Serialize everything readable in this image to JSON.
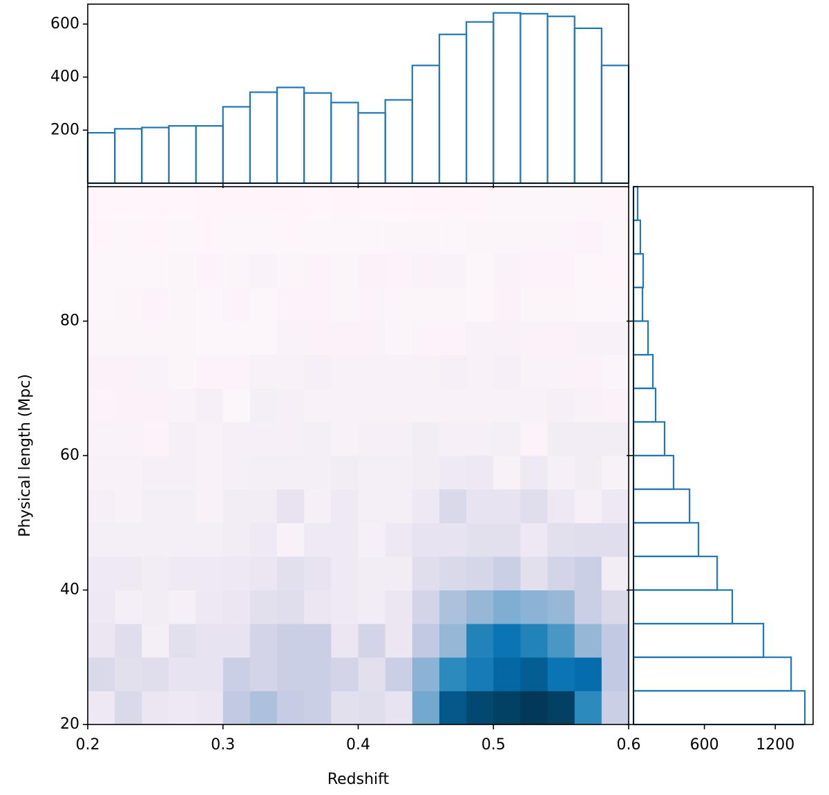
{
  "chart_data": [
    {
      "type": "heatmap",
      "xlabel": "Redshift",
      "ylabel": "Physical length (Mpc)",
      "xlim": [
        0.2,
        0.6
      ],
      "ylim": [
        20,
        100
      ],
      "xticks": [
        0.2,
        0.3,
        0.4,
        0.5,
        0.6
      ],
      "yticks": [
        20,
        40,
        60,
        80
      ],
      "xbins": [
        0.2,
        0.22,
        0.24,
        0.26,
        0.28,
        0.3,
        0.32,
        0.34,
        0.36,
        0.38,
        0.4,
        0.42,
        0.44,
        0.46,
        0.48,
        0.5,
        0.52,
        0.54,
        0.56,
        0.58,
        0.6
      ],
      "ybins": [
        20,
        25,
        30,
        35,
        40,
        45,
        50,
        55,
        60,
        65,
        70,
        75,
        80,
        85,
        90,
        95,
        100
      ],
      "zlim": [
        0,
        170
      ],
      "colormap": [
        "#fff7fb",
        "#ece7f2",
        "#d0d1e6",
        "#a6bddb",
        "#74a9cf",
        "#3690c0",
        "#0570b0",
        "#045a8d",
        "#023858"
      ],
      "z": [
        [
          20,
          35,
          22,
          20,
          22,
          50,
          60,
          48,
          45,
          28,
          30,
          25,
          85,
          150,
          160,
          165,
          170,
          165,
          110,
          45
        ],
        [
          35,
          28,
          30,
          25,
          25,
          45,
          40,
          45,
          45,
          40,
          28,
          45,
          75,
          110,
          120,
          135,
          145,
          125,
          130,
          50
        ],
        [
          22,
          30,
          12,
          28,
          25,
          25,
          40,
          45,
          45,
          22,
          40,
          22,
          50,
          70,
          115,
          125,
          115,
          100,
          70,
          50
        ],
        [
          20,
          12,
          15,
          10,
          20,
          22,
          28,
          30,
          22,
          18,
          15,
          22,
          40,
          60,
          70,
          80,
          75,
          70,
          45,
          35
        ],
        [
          18,
          18,
          15,
          18,
          18,
          20,
          22,
          28,
          25,
          18,
          15,
          15,
          30,
          35,
          38,
          45,
          28,
          40,
          45,
          15
        ],
        [
          12,
          12,
          12,
          12,
          12,
          15,
          18,
          8,
          18,
          18,
          10,
          20,
          25,
          25,
          28,
          28,
          20,
          28,
          30,
          30
        ],
        [
          10,
          8,
          12,
          12,
          8,
          15,
          15,
          25,
          10,
          18,
          12,
          12,
          20,
          35,
          25,
          25,
          30,
          20,
          10,
          20
        ],
        [
          8,
          8,
          10,
          10,
          8,
          10,
          12,
          12,
          12,
          15,
          12,
          12,
          15,
          18,
          20,
          8,
          18,
          10,
          15,
          8
        ],
        [
          7,
          7,
          5,
          10,
          8,
          10,
          10,
          10,
          12,
          8,
          10,
          10,
          15,
          10,
          10,
          12,
          5,
          15,
          15,
          15
        ],
        [
          5,
          6,
          6,
          7,
          10,
          3,
          12,
          10,
          8,
          8,
          8,
          8,
          8,
          8,
          8,
          8,
          8,
          10,
          8,
          6
        ],
        [
          6,
          6,
          7,
          4,
          5,
          5,
          8,
          8,
          10,
          8,
          8,
          8,
          8,
          10,
          8,
          10,
          7,
          7,
          6,
          4
        ],
        [
          4,
          4,
          4,
          4,
          3,
          3,
          3,
          7,
          6,
          6,
          6,
          4,
          5,
          5,
          8,
          8,
          6,
          6,
          8,
          8
        ],
        [
          3,
          4,
          5,
          4,
          3,
          5,
          3,
          5,
          5,
          4,
          5,
          4,
          4,
          4,
          3,
          6,
          4,
          4,
          3,
          3
        ],
        [
          3,
          3,
          3,
          4,
          5,
          4,
          7,
          4,
          5,
          4,
          6,
          5,
          6,
          7,
          3,
          7,
          5,
          5,
          3,
          2
        ],
        [
          2,
          3,
          2,
          3,
          2,
          3,
          3,
          2,
          3,
          3,
          3,
          4,
          4,
          3,
          4,
          4,
          4,
          4,
          5,
          3
        ],
        [
          1,
          1,
          1,
          1,
          2,
          2,
          2,
          2,
          1,
          2,
          1,
          1,
          2,
          2,
          2,
          3,
          3,
          3,
          3,
          2
        ]
      ]
    },
    {
      "type": "histogram",
      "orientation": "vertical",
      "color": "#1f77b4",
      "bins": [
        0.2,
        0.22,
        0.24,
        0.26,
        0.28,
        0.3,
        0.32,
        0.34,
        0.36,
        0.38,
        0.4,
        0.42,
        0.44,
        0.46,
        0.48,
        0.5,
        0.52,
        0.54,
        0.56,
        0.58,
        0.6
      ],
      "counts": [
        190,
        205,
        210,
        216,
        216,
        288,
        343,
        361,
        340,
        304,
        265,
        314,
        444,
        561,
        608,
        642,
        639,
        629,
        584,
        444
      ],
      "ylim": [
        0,
        675
      ],
      "yticks": [
        200,
        400,
        600
      ]
    },
    {
      "type": "histogram",
      "orientation": "horizontal",
      "color": "#1f77b4",
      "bins": [
        20,
        25,
        30,
        35,
        40,
        45,
        50,
        55,
        60,
        65,
        70,
        75,
        80,
        85,
        90,
        95,
        100
      ],
      "counts": [
        1450,
        1334,
        1100,
        836,
        708,
        550,
        474,
        339,
        263,
        187,
        164,
        123,
        76,
        82,
        58,
        35
      ],
      "xlim": [
        0,
        1520
      ],
      "xticks": [
        600,
        1200
      ]
    }
  ]
}
